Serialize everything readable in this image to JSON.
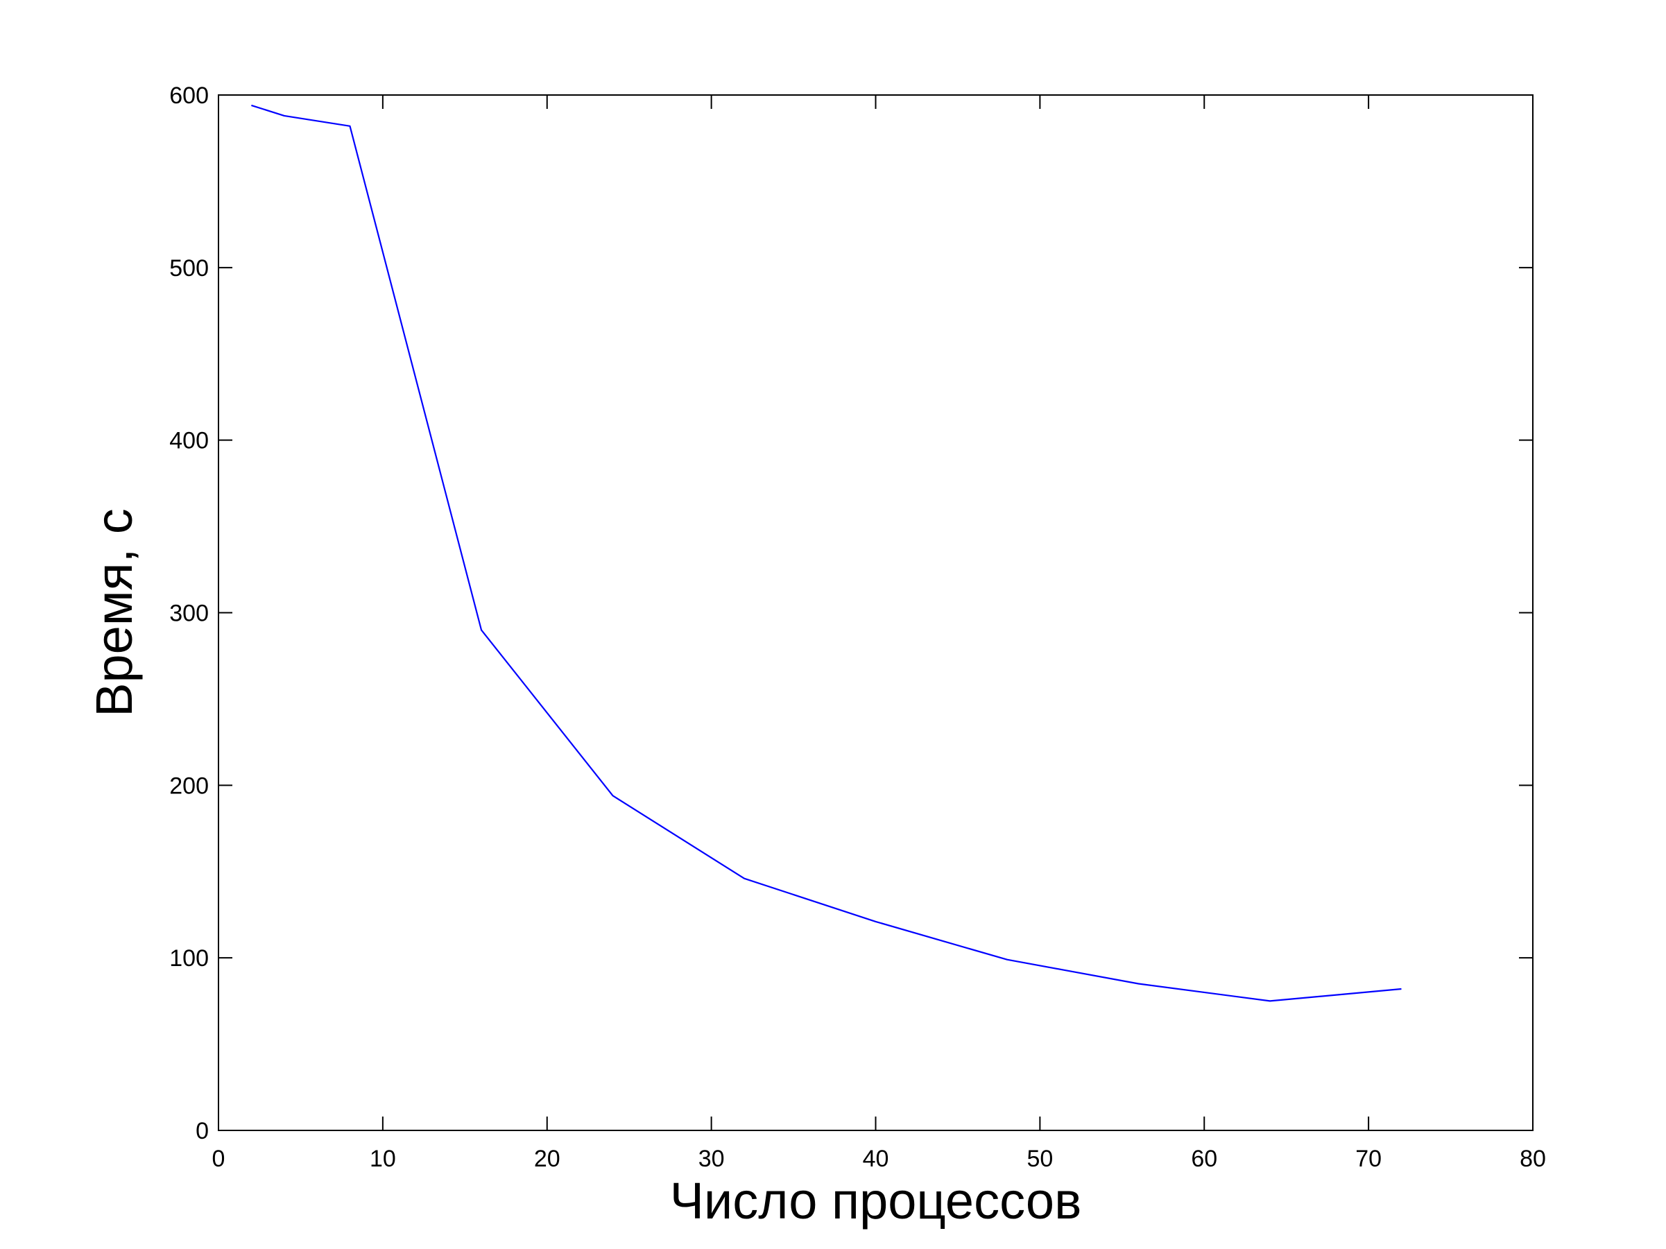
{
  "chart_data": {
    "type": "line",
    "title": "",
    "xlabel": "Число процессов",
    "ylabel": "Время, с",
    "xlim": [
      0,
      80
    ],
    "ylim": [
      0,
      600
    ],
    "xticks": [
      0,
      10,
      20,
      30,
      40,
      50,
      60,
      70,
      80
    ],
    "yticks": [
      0,
      100,
      200,
      300,
      400,
      500,
      600
    ],
    "grid": false,
    "legend": "none",
    "series": [
      {
        "color": "#0000ff",
        "x": [
          2,
          4,
          8,
          16,
          24,
          32,
          40,
          48,
          56,
          64,
          72
        ],
        "y": [
          594,
          588,
          582,
          290,
          194,
          146,
          121,
          99,
          85,
          75,
          82
        ]
      }
    ]
  }
}
